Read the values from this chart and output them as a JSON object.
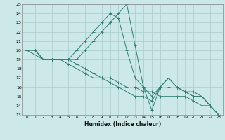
{
  "xlabel": "Humidex (Indice chaleur)",
  "bg_color": "#cde8e8",
  "grid_color": "#aacccc",
  "line_color": "#2e7d72",
  "xlim": [
    -0.5,
    23.5
  ],
  "ylim": [
    13,
    25
  ],
  "xticks": [
    0,
    1,
    2,
    3,
    4,
    5,
    6,
    7,
    8,
    9,
    10,
    11,
    12,
    13,
    14,
    15,
    16,
    17,
    18,
    19,
    20,
    21,
    22,
    23
  ],
  "yticks": [
    13,
    14,
    15,
    16,
    17,
    18,
    19,
    20,
    21,
    22,
    23,
    24,
    25
  ],
  "series": [
    {
      "x": [
        0,
        1,
        2,
        3,
        4,
        5,
        6,
        7,
        8,
        9,
        10,
        11,
        12,
        13,
        14,
        15,
        16,
        17,
        18,
        19,
        20,
        21,
        22,
        23
      ],
      "y": [
        20,
        20,
        19,
        19,
        19,
        19,
        18.5,
        18.0,
        17.5,
        17.0,
        17.0,
        16.5,
        16.0,
        16.0,
        15.5,
        15.5,
        15.0,
        15.0,
        15.0,
        15.0,
        14.5,
        14.0,
        14.0,
        13.0
      ]
    },
    {
      "x": [
        0,
        1,
        2,
        3,
        4,
        5,
        6,
        7,
        8,
        9,
        10,
        11,
        12,
        13,
        14,
        15,
        16,
        17,
        18,
        19,
        20,
        21,
        22,
        23
      ],
      "y": [
        20,
        20,
        19,
        19,
        19,
        18.5,
        18.0,
        17.5,
        17.0,
        17.0,
        16.5,
        16.0,
        15.5,
        15.0,
        15.0,
        14.5,
        16.0,
        17.0,
        16.0,
        15.5,
        15.0,
        15.0,
        14.0,
        13.0
      ]
    },
    {
      "x": [
        0,
        2,
        3,
        4,
        5,
        6,
        7,
        8,
        9,
        10,
        11,
        12,
        13,
        14,
        15,
        16,
        17,
        18,
        19,
        20,
        21,
        22,
        23
      ],
      "y": [
        20,
        19,
        19,
        19,
        19,
        20,
        21,
        22,
        23,
        24,
        23.5,
        20,
        17,
        16,
        15,
        16,
        17,
        16,
        15.5,
        15.5,
        15.0,
        14.0,
        13.0
      ]
    },
    {
      "x": [
        0,
        1,
        2,
        3,
        6,
        7,
        8,
        9,
        10,
        11,
        12,
        13,
        14,
        15,
        16,
        17,
        18,
        19,
        20,
        21,
        22,
        23
      ],
      "y": [
        20,
        20,
        19,
        19,
        19,
        20,
        21,
        22,
        23,
        24,
        25,
        20.5,
        16,
        13.5,
        16,
        16,
        16,
        15.5,
        15,
        15,
        14,
        13
      ]
    }
  ]
}
